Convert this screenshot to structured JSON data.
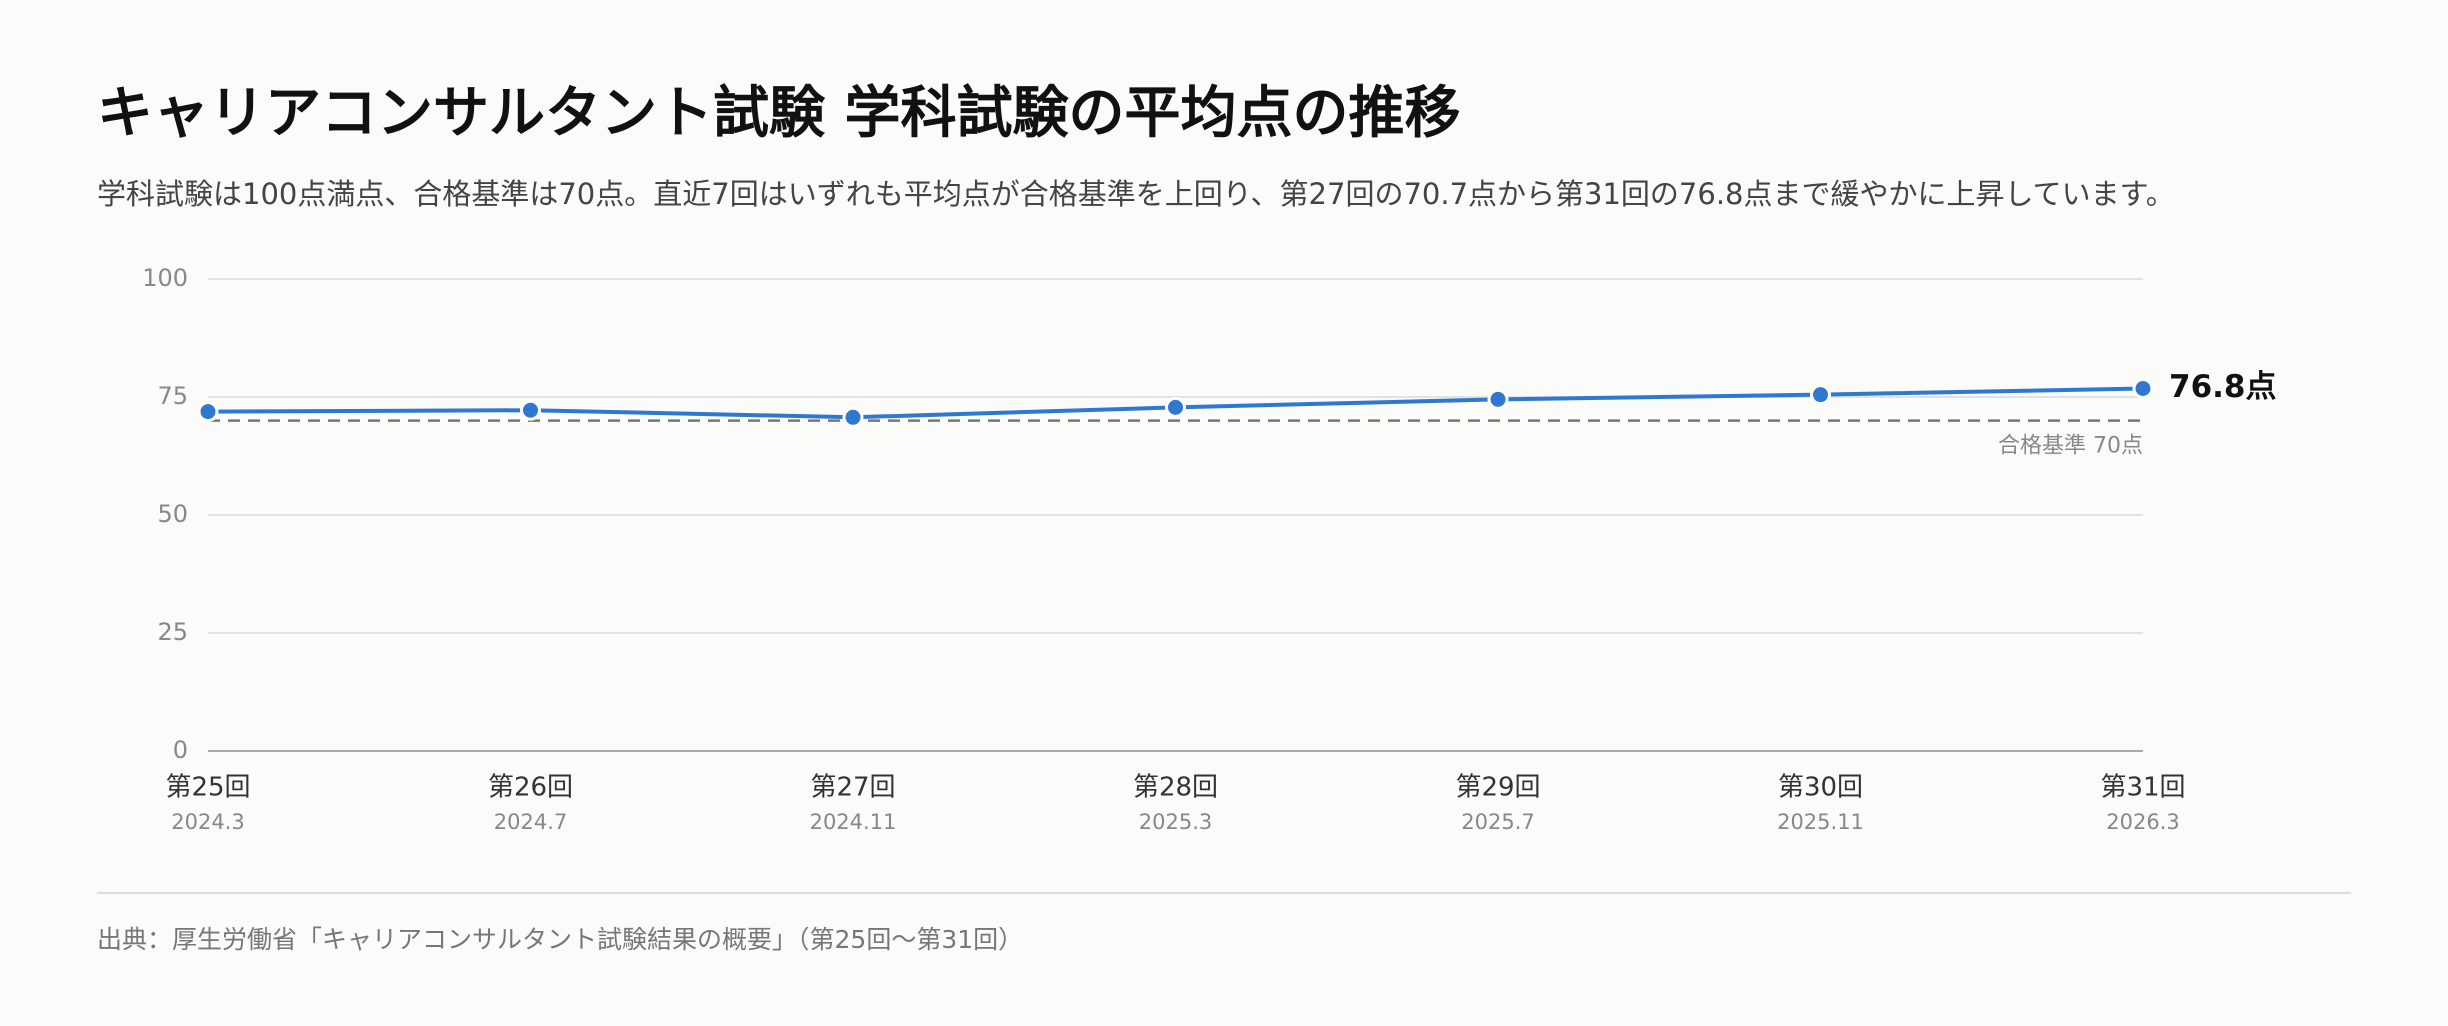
{
  "chart_data": {
    "type": "line",
    "title": "キャリアコンサルタント試験 学科試験の平均点の推移",
    "subtitle": "学科試験は100点満点、合格基準は70点。直近7回はいずれも平均点が合格基準を上回り、第27回の70.7点から第31回の76.8点まで緩やかに上昇しています。",
    "categories": [
      "第25回",
      "第26回",
      "第27回",
      "第28回",
      "第29回",
      "第30回",
      "第31回"
    ],
    "dates": [
      "2024.3",
      "2024.7",
      "2024.11",
      "2025.3",
      "2025.7",
      "2025.11",
      "2026.3"
    ],
    "values": [
      71.9,
      72.2,
      70.7,
      72.8,
      74.5,
      75.5,
      76.8
    ],
    "last_value_label": "76.8点",
    "color": "#2f78d0",
    "ylim": [
      0,
      100
    ],
    "yticks": [
      0,
      25,
      50,
      75,
      100
    ],
    "grid": true,
    "reference_line": {
      "value": 70,
      "label": "合格基準 70点"
    },
    "source": "出典：厚生労働省「キャリアコンサルタント試験結果の概要」（第25回〜第31回）"
  }
}
